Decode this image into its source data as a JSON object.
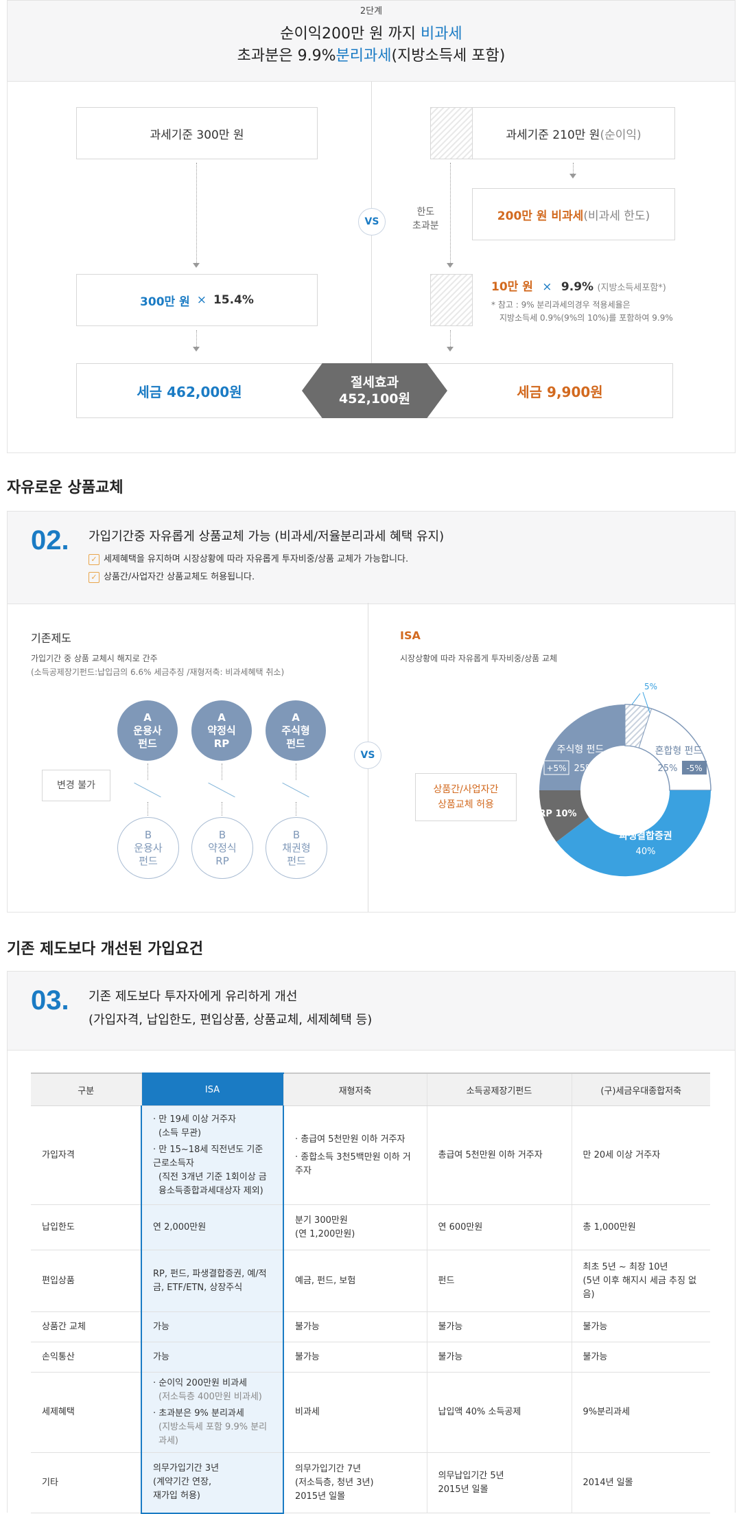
{
  "sec1": {
    "step": "2단계",
    "line1_a": "순이익200만 원 까지 ",
    "line1_b": "비과세",
    "line2_a": "초과분은 9.9%",
    "line2_b": "분리과세",
    "line2_c": "(지방소득세 포함)",
    "left_box": "과세기준 300만 원",
    "right_box_a": "과세기준 210만 원 ",
    "right_box_b": "(순이익)",
    "exempt_a": "200만 원 비과세",
    "exempt_b": "(비과세 한도)",
    "limit_label_1": "한도",
    "limit_label_2": "초과분",
    "vs": "VS",
    "left_calc_a": "300만 원",
    "left_calc_x": "×",
    "left_calc_b": "15.4%",
    "right_calc_a": "10만 원",
    "right_calc_x": "×",
    "right_calc_b": "9.9%",
    "right_calc_c": "(지방소득세포함*)",
    "note_1": "* 참고 : 9% 분리과세의경우 적용세율은",
    "note_2": "지방소득세 0.9%(9%의 10%)를 포함하여 9.9%",
    "tax_left": "세금 462,000원",
    "saving_1": "절세효과",
    "saving_2": "452,100원",
    "tax_right": "세금 9,900원"
  },
  "sec2": {
    "heading": "자유로운 상품교체",
    "num": "02.",
    "title": "가입기간중 자유롭게 상품교체 가능 (비과세/저율분리과세 혜택 유지)",
    "check1": "세제혜택을 유지하며 시장상황에 따라 자유롭게 투자비중/상품 교체가 가능합니다.",
    "check2": "상품간/사업자간 상품교체도 허용됩니다.",
    "left_title": "기존제도",
    "left_desc1": "가입기간 중 상품 교체시 해지로 간주",
    "left_desc2": "(소득공제장기펀드:납입금의 6.6% 세금추징 /재형저축: 비과세혜택 취소)",
    "no_change": "변경 불가",
    "a_items": [
      [
        "A",
        "운용사",
        "펀드"
      ],
      [
        "A",
        "약정식",
        "RP"
      ],
      [
        "A",
        "주식형",
        "펀드"
      ]
    ],
    "b_items": [
      [
        "B",
        "운용사",
        "펀드"
      ],
      [
        "B",
        "약정식",
        "RP"
      ],
      [
        "B",
        "채권형",
        "펀드"
      ]
    ],
    "vs": "VS",
    "right_title": "ISA",
    "right_desc": "시장상황에 따라 자유롭게 투자비중/상품 교체",
    "allow_1": "상품간/사업자간",
    "allow_2": "상품교체 허용",
    "pie": {
      "stock_label": "주식형 펀드",
      "stock_value": "25%",
      "stock_delta": "+5%",
      "mixed_label": "혼합형 펀드",
      "mixed_value": "25%",
      "mixed_delta": "-5%",
      "rp_label": "RP 10%",
      "deriv_label": "파생결합증권",
      "deriv_value": "40%",
      "shift": "5%"
    }
  },
  "chart_data": {
    "type": "pie",
    "slices": [
      {
        "name": "혼합형 펀드",
        "value": 25
      },
      {
        "name": "파생결합증권",
        "value": 40
      },
      {
        "name": "RP",
        "value": 10
      },
      {
        "name": "주식형 펀드",
        "value": 25
      }
    ],
    "donut": true
  },
  "sec3": {
    "heading": "기존 제도보다 개선된 가입요건",
    "num": "03.",
    "title1": "기존 제도보다 투자자에게 유리하게 개선",
    "title2": "(가입자격, 납입한도, 편입상품, 상품교체, 세제혜택 등)",
    "headers": [
      "구분",
      "ISA",
      "재형저축",
      "소득공제장기펀드",
      "(구)세금우대종합저축"
    ],
    "rows": {
      "r1": {
        "label": "가입자격",
        "isa1": "· 만 19세 이상 거주자",
        "isa2": "(소득 무관)",
        "isa3": "· 만 15~18세 직전년도 기준 근로소득자",
        "isa4": "(직전 3개년 기준 1회이상 금융소득종합과세대상자 제외)",
        "c2a": "· 총급여 5천만원 이하 거주자",
        "c2b": "· 종합소득 3천5백만원 이하 거주자",
        "c3": "총급여 5천만원 이하 거주자",
        "c4": "만 20세 이상 거주자"
      },
      "r2": {
        "label": "납입한도",
        "isa": "연 2,000만원",
        "c2a": "분기 300만원",
        "c2b": "(연 1,200만원)",
        "c3": "연 600만원",
        "c4": "총 1,000만원"
      },
      "r3": {
        "label": "편입상품",
        "isa": "RP, 펀드, 파생결합증권, 예/적금, ETF/ETN, 상장주식",
        "c2": "예금, 펀드, 보험",
        "c3": "펀드",
        "c4a": "최초 5년 ~ 최장 10년",
        "c4b": "(5년 이후 해지시 세금 추징 없음)"
      },
      "r4": {
        "label": "상품간 교체",
        "isa": "가능",
        "c2": "불가능",
        "c3": "불가능",
        "c4": "불가능"
      },
      "r5": {
        "label": "손익통산",
        "isa": "가능",
        "c2": "불가능",
        "c3": "불가능",
        "c4": "불가능"
      },
      "r6": {
        "label": "세제혜택",
        "isa1": "· 순이익 200만원 비과세",
        "isa2": "(저소득층 400만원 비과세)",
        "isa3": "· 초과분은 9% 분리과세",
        "isa4": "(지방소득세 포함 9.9% 분리과세)",
        "c2": "비과세",
        "c3": "납입액 40% 소득공제",
        "c4": "9%분리과세"
      },
      "r7": {
        "label": "기타",
        "isa1": "의무가입기간 3년",
        "isa2": "(계약기간 연장,",
        "isa3": "재가입 허용)",
        "c2a": "의무가입기간 7년",
        "c2b": "(저소득층, 청년 3년)",
        "c2c": "2015년 일몰",
        "c3a": "의무납입기간 5년",
        "c3b": "2015년 일몰",
        "c4": "2014년 일몰"
      }
    }
  }
}
